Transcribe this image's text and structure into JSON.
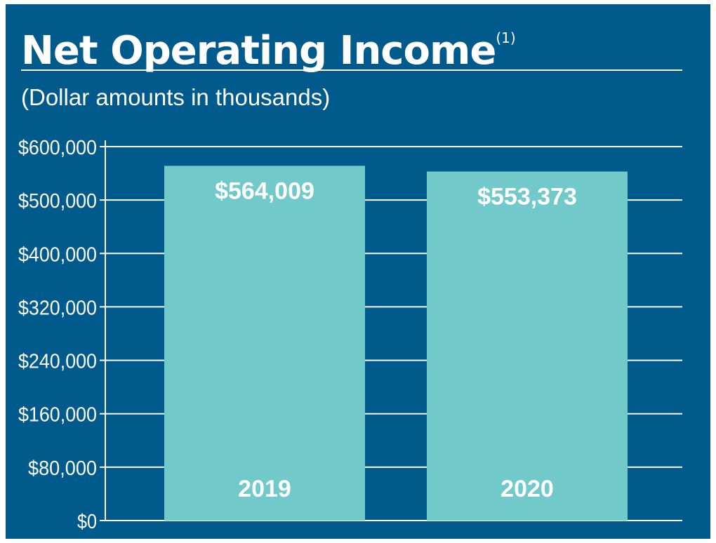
{
  "header": {
    "title": "Net Operating Income",
    "title_footnote": "(1)",
    "subtitle": "(Dollar amounts in thousands)"
  },
  "colors": {
    "background": "#005a8c",
    "bar": "#72c9c9",
    "text": "#ffffff"
  },
  "chart_data": {
    "type": "bar",
    "title": "Net Operating Income",
    "subtitle": "(Dollar amounts in thousands)",
    "categories": [
      "2019",
      "2020"
    ],
    "values": [
      564009,
      553373
    ],
    "value_labels": [
      "$564,009",
      "$553,373"
    ],
    "yticks": [
      {
        "value": 0,
        "label": "$0"
      },
      {
        "value": 80000,
        "label": "$80,000"
      },
      {
        "value": 160000,
        "label": "$160,000"
      },
      {
        "value": 240000,
        "label": "$240,000"
      },
      {
        "value": 320000,
        "label": "$320,000"
      },
      {
        "value": 400000,
        "label": "$400,000"
      },
      {
        "value": 500000,
        "label": "$500,000"
      },
      {
        "value": 600000,
        "label": "$600,000"
      }
    ],
    "xlabel": "",
    "ylabel": "",
    "grid": true,
    "legend": "none"
  }
}
